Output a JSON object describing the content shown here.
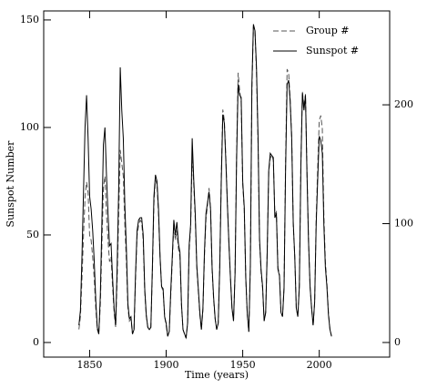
{
  "chart_data": {
    "type": "line",
    "xlabel": "Time (years)",
    "ylabel": "Sunspot Number",
    "xlim": [
      1820,
      2046
    ],
    "ylim": [
      -6.8,
      154.2
    ],
    "y2lim": [
      -12.3,
      279
    ],
    "xticks": [
      1850,
      1900,
      1950,
      2000
    ],
    "yticks": [
      0,
      50,
      100,
      150
    ],
    "y2ticks": [
      0,
      100,
      200
    ],
    "legend": "upper right",
    "x": [
      1843,
      1844,
      1845,
      1846,
      1847,
      1848,
      1849,
      1850,
      1851,
      1852,
      1853,
      1854,
      1855,
      1856,
      1857,
      1858,
      1859,
      1860,
      1861,
      1862,
      1863,
      1864,
      1865,
      1866,
      1867,
      1868,
      1869,
      1870,
      1871,
      1872,
      1873,
      1874,
      1875,
      1876,
      1877,
      1878,
      1879,
      1880,
      1881,
      1882,
      1883,
      1884,
      1885,
      1886,
      1887,
      1888,
      1889,
      1890,
      1891,
      1892,
      1893,
      1894,
      1895,
      1896,
      1897,
      1898,
      1899,
      1900,
      1901,
      1902,
      1903,
      1904,
      1905,
      1906,
      1907,
      1908,
      1909,
      1910,
      1911,
      1912,
      1913,
      1914,
      1915,
      1916,
      1917,
      1918,
      1919,
      1920,
      1921,
      1922,
      1923,
      1924,
      1925,
      1926,
      1927,
      1928,
      1929,
      1930,
      1931,
      1932,
      1933,
      1934,
      1935,
      1936,
      1937,
      1938,
      1939,
      1940,
      1941,
      1942,
      1943,
      1944,
      1945,
      1946,
      1947,
      1948,
      1949,
      1950,
      1951,
      1952,
      1953,
      1954,
      1955,
      1956,
      1957,
      1958,
      1959,
      1960,
      1961,
      1962,
      1963,
      1964,
      1965,
      1966,
      1967,
      1968,
      1969,
      1970,
      1971,
      1972,
      1973,
      1974,
      1975,
      1976,
      1977,
      1978,
      1979,
      1980,
      1981,
      1982,
      1983,
      1984,
      1985,
      1986,
      1987,
      1988,
      1989,
      1990,
      1991,
      1992,
      1993,
      1994,
      1995,
      1996,
      1997,
      1998,
      1999,
      2000,
      2001,
      2002,
      2003,
      2004,
      2005,
      2006,
      2007,
      2008
    ],
    "series": [
      {
        "name": "Group #",
        "color": "#555555",
        "line_style": "dashed",
        "axis": "y2",
        "values": [
          11,
          22,
          54,
          90,
          122,
          135,
          126,
          90,
          86,
          72,
          54,
          29,
          11,
          7,
          32,
          81,
          130,
          140,
          108,
          86,
          68,
          72,
          47,
          25,
          13,
          54,
          108,
          162,
          151,
          140,
          99,
          68,
          29,
          18,
          20,
          7,
          11,
          54,
          90,
          99,
          103,
          101,
          86,
          43,
          22,
          13,
          11,
          13,
          59,
          117,
          137,
          133,
          108,
          72,
          47,
          43,
          22,
          14,
          5,
          9,
          40,
          68,
          99,
          86,
          94,
          79,
          72,
          31,
          11,
          7,
          4,
          16,
          77,
          97,
          158,
          133,
          104,
          63,
          43,
          23,
          11,
          27,
          72,
          104,
          115,
          130,
          113,
          61,
          36,
          20,
          11,
          16,
          65,
          140,
          196,
          187,
          155,
          117,
          83,
          54,
          29,
          18,
          59,
          158,
          227,
          212,
          202,
          133,
          112,
          54,
          23,
          9,
          65,
          212,
          266,
          263,
          227,
          169,
          85,
          59,
          45,
          18,
          25,
          76,
          144,
          155,
          158,
          153,
          108,
          110,
          63,
          58,
          25,
          22,
          47,
          151,
          230,
          227,
          205,
          173,
          99,
          72,
          29,
          22,
          49,
          151,
          211,
          198,
          209,
          144,
          86,
          47,
          29,
          14,
          34,
          104,
          148,
          187,
          191,
          180,
          108,
          68,
          50,
          25,
          11,
          5
        ]
      },
      {
        "name": "Sunspot #",
        "color": "#000000",
        "line_style": "solid",
        "values": [
          8,
          15,
          40,
          70,
          100,
          115,
          95,
          68,
          62,
          52,
          38,
          20,
          7,
          4,
          22,
          55,
          92,
          100,
          78,
          60,
          45,
          46,
          30,
          16,
          8,
          36,
          72,
          128,
          108,
          95,
          64,
          44,
          18,
          11,
          12,
          4,
          6,
          32,
          52,
          57,
          58,
          58,
          50,
          25,
          13,
          7,
          6,
          7,
          35,
          68,
          78,
          75,
          62,
          40,
          26,
          25,
          12,
          9,
          3,
          5,
          24,
          40,
          57,
          50,
          56,
          46,
          42,
          18,
          6,
          4,
          2,
          9,
          45,
          55,
          95,
          76,
          60,
          36,
          25,
          14,
          6,
          16,
          42,
          60,
          65,
          70,
          62,
          35,
          21,
          11,
          6,
          9,
          35,
          75,
          106,
          102,
          84,
          64,
          46,
          30,
          16,
          10,
          32,
          85,
          120,
          115,
          114,
          75,
          63,
          30,
          13,
          5,
          36,
          120,
          148,
          145,
          128,
          96,
          48,
          34,
          26,
          10,
          14,
          42,
          80,
          88,
          87,
          86,
          58,
          60,
          34,
          31,
          14,
          12,
          25,
          80,
          120,
          122,
          112,
          95,
          56,
          40,
          16,
          12,
          26,
          82,
          116,
          108,
          115,
          78,
          47,
          26,
          16,
          8,
          19,
          55,
          76,
          96,
          94,
          88,
          55,
          35,
          26,
          13,
          6,
          3
        ]
      }
    ]
  }
}
